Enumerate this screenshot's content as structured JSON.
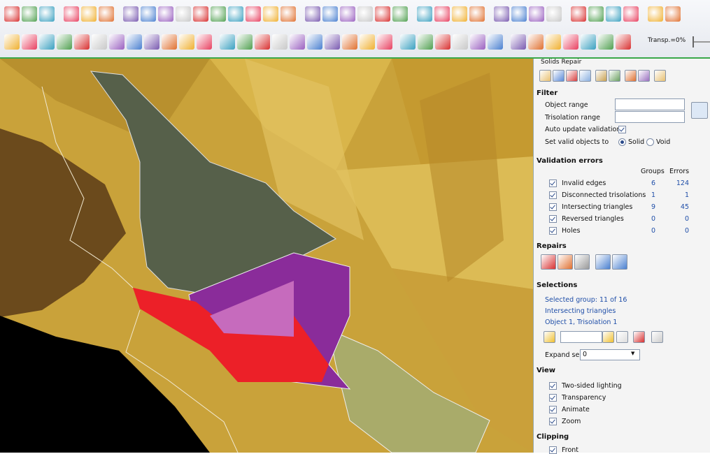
{
  "toolbar": {
    "transparency": "Transp.=0%"
  },
  "panel": {
    "title": "Solids Repair",
    "filter": {
      "heading": "Filter",
      "object_range": "Object range",
      "trisolation_range": "Trisolation range",
      "auto_update": "Auto update validation",
      "set_valid": "Set valid objects to",
      "solid": "Solid",
      "void": "Void"
    },
    "validation": {
      "heading": "Validation errors",
      "columns": [
        "Groups",
        "Errors"
      ],
      "rows": [
        {
          "label": "Invalid edges",
          "groups": 6,
          "errors": 124
        },
        {
          "label": "Disconnected trisolations",
          "groups": 1,
          "errors": 1
        },
        {
          "label": "Intersecting triangles",
          "groups": 9,
          "errors": 45
        },
        {
          "label": "Reversed triangles",
          "groups": 0,
          "errors": 0
        },
        {
          "label": "Holes",
          "groups": 0,
          "errors": 0
        }
      ]
    },
    "repairs": {
      "heading": "Repairs"
    },
    "selections": {
      "heading": "Selections",
      "lines": [
        "Selected group: 11 of 16",
        "Intersecting triangles",
        "Object 1, Trisolation 1"
      ],
      "expand_label": "Expand selection",
      "expand_value": 0
    },
    "view": {
      "heading": "View",
      "options": [
        "Two-sided lighting",
        "Transparency",
        "Animate",
        "Zoom"
      ]
    },
    "clipping": {
      "heading": "Clipping",
      "options": [
        "Front"
      ]
    }
  }
}
